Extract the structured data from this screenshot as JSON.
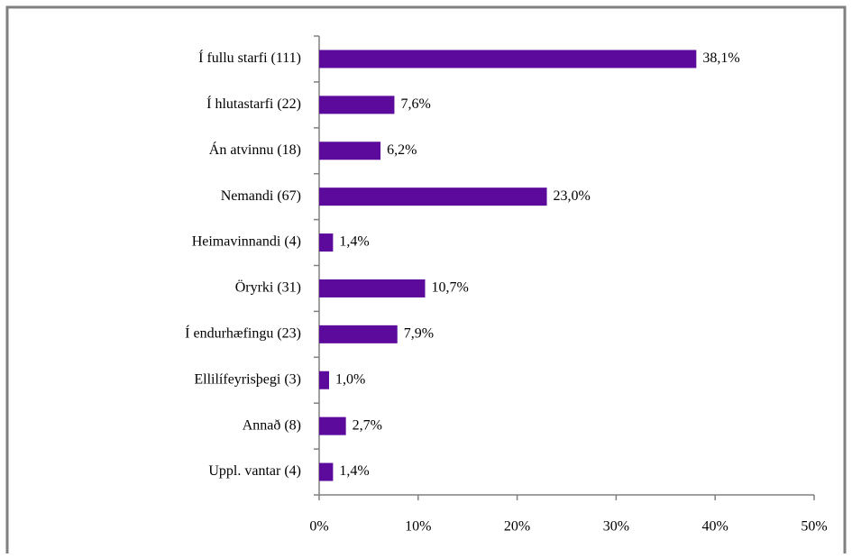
{
  "chart_data": {
    "type": "bar",
    "orientation": "horizontal",
    "categories": [
      "Í fullu starfi (111)",
      "Í hlutastarfi  (22)",
      "Án atvinnu (18)",
      "Nemandi (67)",
      "Heimavinnandi (4)",
      "Öryrki (31)",
      "Í endurhæfingu (23)",
      "Ellilífeyrisþegi  (3)",
      "Annað (8)",
      "Uppl. vantar (4)"
    ],
    "values": [
      38.1,
      7.6,
      6.2,
      23.0,
      1.4,
      10.7,
      7.9,
      1.0,
      2.7,
      1.4
    ],
    "value_labels": [
      "38,1%",
      "7,6%",
      "6,2%",
      "23,0%",
      "1,4%",
      "10,7%",
      "7,9%",
      "1,0%",
      "2,7%",
      "1,4%"
    ],
    "color": "#5c0a9c",
    "xlim": [
      0,
      50
    ],
    "xticks": [
      {
        "value": 0,
        "label": "0%"
      },
      {
        "value": 10,
        "label": "10%"
      },
      {
        "value": 20,
        "label": "20%"
      },
      {
        "value": 30,
        "label": "30%"
      },
      {
        "value": 40,
        "label": "40%"
      },
      {
        "value": 50,
        "label": "50%"
      }
    ],
    "grid": false
  }
}
